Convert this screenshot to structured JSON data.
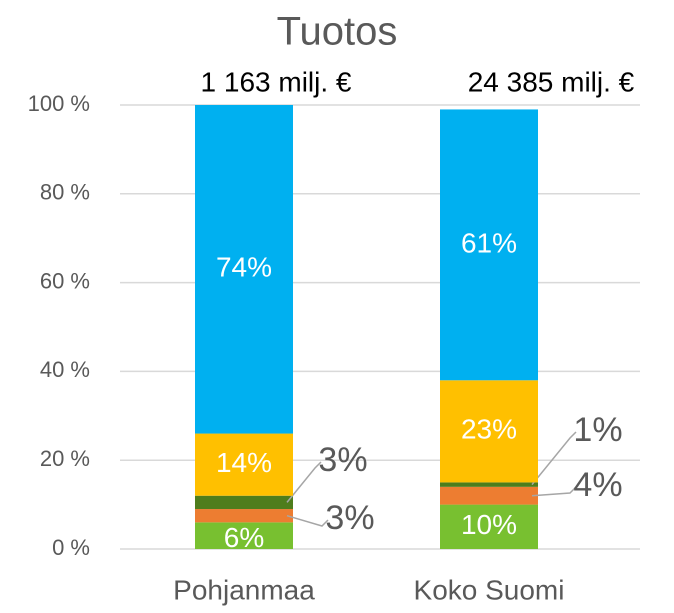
{
  "chart_data": {
    "type": "stacked_bar",
    "title": "Tuotos",
    "annotations": [
      "1 163 milj. €",
      "24 385 milj. €"
    ],
    "categories": [
      "Pohjanmaa",
      "Koko Suomi"
    ],
    "series": [
      {
        "color": "#78c030",
        "values": [
          6,
          10
        ],
        "value_labels": [
          "6%",
          "10%"
        ]
      },
      {
        "color": "#ed7d31",
        "values": [
          3,
          4
        ],
        "value_labels": [
          "3%",
          "4%"
        ]
      },
      {
        "color": "#4e7d1c",
        "values": [
          3,
          1
        ],
        "value_labels": [
          "3%",
          "1%"
        ]
      },
      {
        "color": "#ffc000",
        "values": [
          14,
          23
        ],
        "value_labels": [
          "14%",
          "23%"
        ]
      },
      {
        "color": "#00b0f0",
        "values": [
          74,
          61
        ],
        "value_labels": [
          "74%",
          "61%"
        ]
      }
    ],
    "ylim": [
      0,
      100
    ],
    "yticks": [
      {
        "value": 0,
        "label": "0 %"
      },
      {
        "value": 20,
        "label": "20 %"
      },
      {
        "value": 40,
        "label": "40 %"
      },
      {
        "value": 60,
        "label": "60 %"
      },
      {
        "value": 80,
        "label": "80 %"
      },
      {
        "value": 100,
        "label": "100 %"
      }
    ],
    "grid": true
  }
}
